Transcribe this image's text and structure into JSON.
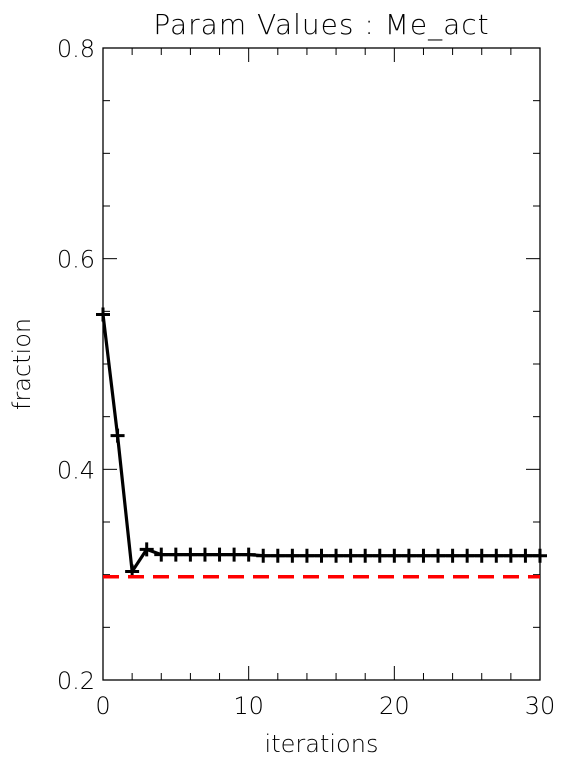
{
  "chart_data": {
    "type": "line",
    "title": "Param Values : Me_act",
    "xlabel": "iterations",
    "ylabel": "fraction",
    "xlim": [
      0,
      30
    ],
    "ylim": [
      0.2,
      0.8
    ],
    "x_ticks": [
      0,
      10,
      20,
      30
    ],
    "x_tick_labels": [
      "0",
      "10",
      "20",
      "30"
    ],
    "y_ticks": [
      0.2,
      0.4,
      0.6,
      0.8
    ],
    "y_tick_labels": [
      "0.2",
      "0.4",
      "0.6",
      "0.8"
    ],
    "grid": false,
    "series": [
      {
        "style": "solid-with-plus-markers",
        "color": "#000000",
        "x": [
          0,
          1,
          2,
          3,
          4,
          5,
          6,
          7,
          8,
          9,
          10,
          11,
          12,
          13,
          14,
          15,
          16,
          17,
          18,
          19,
          20,
          21,
          22,
          23,
          24,
          25,
          26,
          27,
          28,
          29,
          30
        ],
        "values": [
          0.547,
          0.432,
          0.303,
          0.324,
          0.319,
          0.319,
          0.319,
          0.319,
          0.319,
          0.319,
          0.319,
          0.318,
          0.318,
          0.318,
          0.318,
          0.318,
          0.318,
          0.318,
          0.318,
          0.318,
          0.318,
          0.318,
          0.318,
          0.318,
          0.318,
          0.318,
          0.318,
          0.318,
          0.318,
          0.318,
          0.318
        ]
      },
      {
        "style": "dashed",
        "color": "#ff0000",
        "x": [
          0,
          30
        ],
        "values": [
          0.298,
          0.298
        ]
      }
    ]
  }
}
